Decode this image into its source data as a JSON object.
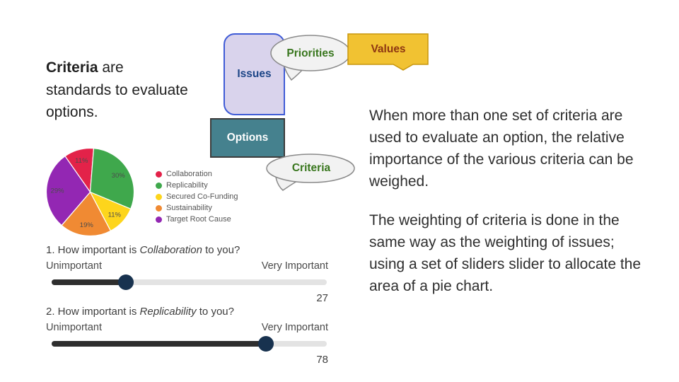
{
  "intro": {
    "line1_bold": "Criteria",
    "line1_rest": " are",
    "line2": "standards to evaluate",
    "line3": "options."
  },
  "diagram": {
    "issues_label": "Issues",
    "priorities_label": "Priorities",
    "values_label": "Values",
    "options_label": "Options",
    "criteria_label": "Criteria",
    "accent_colors": {
      "issues_fill": "#d9d3ec",
      "issues_border": "#3f5bd6",
      "issues_text": "#1c4587",
      "options_fill": "#45818e",
      "values_fill": "#f1c232",
      "values_text": "#8d3512",
      "bubble_fill": "#f2f2f2",
      "bubble_text": "#38761d"
    }
  },
  "chart_data": {
    "type": "pie",
    "categories": [
      "Collaboration",
      "Replicability",
      "Secured Co-Funding",
      "Sustainability",
      "Target Root Cause"
    ],
    "values": [
      11,
      30,
      11,
      19,
      29
    ],
    "labels": [
      "11%",
      "30%",
      "11%",
      "19%",
      "29%"
    ],
    "colors": [
      "#e32249",
      "#3fa84c",
      "#fdd51c",
      "#f08a33",
      "#9327b3"
    ],
    "legend_position": "right",
    "start_angle_deg": -35
  },
  "sliders": [
    {
      "question_prefix": "1. How important is ",
      "criterion": "Collaboration",
      "question_suffix": " to you?",
      "left_label": "Unimportant",
      "right_label": "Very Important",
      "value": 27
    },
    {
      "question_prefix": "2. How important is ",
      "criterion": "Replicability",
      "question_suffix": " to you?",
      "left_label": "Unimportant",
      "right_label": "Very Important",
      "value": 78
    }
  ],
  "right_text": {
    "para1": "When more than one set of criteria are used to evaluate an option, the relative importance of the various criteria can be weighed.",
    "para2": "The weighting of criteria is done in the same way as the weighting of issues; using a set of sliders slider to allocate the area of a pie chart."
  }
}
